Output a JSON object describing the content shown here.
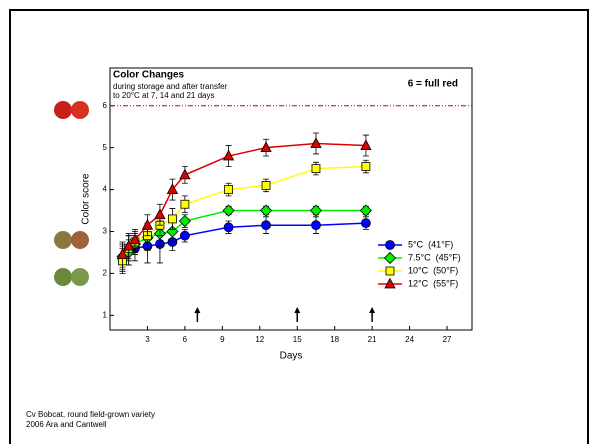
{
  "chart_data": {
    "type": "line",
    "title": "Color Changes",
    "subtitle": [
      "during storage and after transfer",
      "to 20°C at 7, 14 and 21 days"
    ],
    "note": "6 = full red",
    "xlabel": "Days",
    "ylabel": "Color score",
    "x": [
      1,
      1.5,
      2,
      3,
      4,
      5,
      6,
      9.5,
      12.5,
      16.5,
      20.5
    ],
    "series": [
      {
        "name": "5°C  (41°F)",
        "color": "#0000ff",
        "marker": "circle",
        "values": [
          2.35,
          2.55,
          2.6,
          2.65,
          2.7,
          2.75,
          2.9,
          3.1,
          3.15,
          3.15,
          3.2
        ],
        "errors": [
          0.3,
          0.35,
          0.3,
          0.4,
          0.45,
          0.2,
          0.15,
          0.15,
          0.2,
          0.2,
          0.15
        ]
      },
      {
        "name": "7.5°C  (45°F)",
        "color": "#00ee00",
        "marker": "diamond",
        "values": [
          2.4,
          2.5,
          2.7,
          2.85,
          2.95,
          3.0,
          3.25,
          3.5,
          3.5,
          3.5,
          3.5
        ],
        "errors": [
          0.3,
          0.3,
          0.25,
          0.3,
          0.3,
          0.25,
          0.15,
          0.1,
          0.1,
          0.1,
          0.1
        ]
      },
      {
        "name": "10°C  (50°F)",
        "color": "#ffff00",
        "marker": "square",
        "values": [
          2.3,
          2.6,
          2.75,
          2.9,
          3.15,
          3.3,
          3.65,
          4.0,
          4.1,
          4.5,
          4.55
        ],
        "errors": [
          0.3,
          0.3,
          0.25,
          0.3,
          0.25,
          0.25,
          0.2,
          0.15,
          0.15,
          0.15,
          0.15
        ]
      },
      {
        "name": "12°C  (55°F)",
        "color": "#dd0000",
        "marker": "triangle",
        "values": [
          2.45,
          2.65,
          2.8,
          3.15,
          3.4,
          4.0,
          4.35,
          4.8,
          5.0,
          5.1,
          5.05
        ],
        "errors": [
          0.3,
          0.3,
          0.25,
          0.25,
          0.25,
          0.25,
          0.2,
          0.25,
          0.2,
          0.25,
          0.25
        ]
      }
    ],
    "reference_line": 6,
    "arrows_x": [
      7,
      15,
      21
    ],
    "xlim": [
      0,
      29
    ],
    "xticks": [
      3,
      6,
      9,
      12,
      15,
      18,
      21,
      24,
      27
    ],
    "ylim": [
      0.65,
      6.9
    ],
    "yticks": [
      1,
      2,
      3,
      4,
      5,
      6
    ],
    "legend": "lower right",
    "footer": [
      "Cv Bobcat, round field-grown variety",
      "2006 Ara and Cantwell"
    ]
  }
}
